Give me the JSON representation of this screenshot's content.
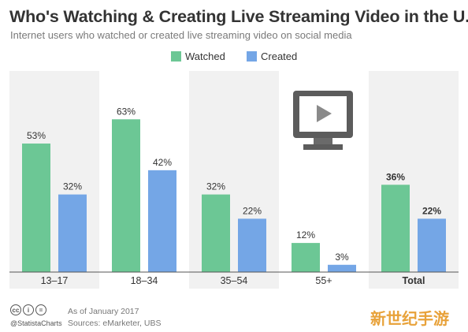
{
  "header": {
    "title": "Who's Watching & Creating Live Streaming Video in the U.S.",
    "subtitle": "Internet users who watched or created live streaming video on social media"
  },
  "chart_data": {
    "type": "bar",
    "categories": [
      "13–17",
      "18–34",
      "35–54",
      "55+",
      "Total"
    ],
    "series": [
      {
        "name": "Watched",
        "values": [
          53,
          63,
          32,
          12,
          36
        ],
        "color": "#6cc795"
      },
      {
        "name": "Created",
        "values": [
          32,
          42,
          22,
          3,
          22
        ],
        "color": "#74a6e6"
      }
    ],
    "value_suffix": "%",
    "legend_position": "top-center",
    "bold_category": "Total",
    "ylim": [
      0,
      70
    ],
    "grid": false
  },
  "footer": {
    "handle": "@StatistaCharts",
    "as_of": "As of January 2017",
    "sources": "Sources: eMarketer, UBS",
    "cc_icons": [
      "cc",
      "i",
      "="
    ]
  },
  "logo": {
    "text": "新世纪手游"
  },
  "illustration": {
    "icon": "video-monitor-icon"
  },
  "colors": {
    "band": "#f1f1f1",
    "text": "#333333",
    "axis_line": "#555555"
  }
}
